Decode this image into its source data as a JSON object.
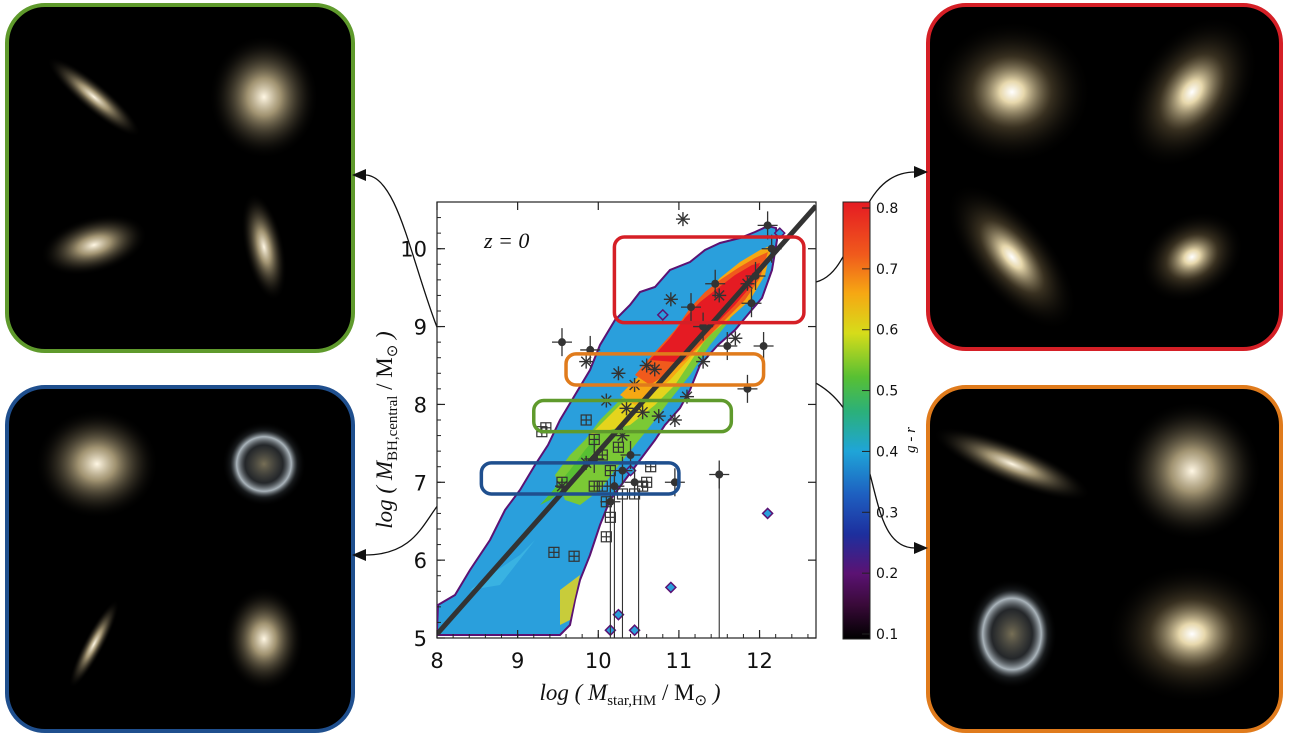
{
  "chart_data": {
    "type": "heatmap",
    "title": "",
    "annotation": "z = 0",
    "xlabel": {
      "prefix": "log ( ",
      "main": "M",
      "sub": "star,HM",
      "sep": " / M",
      "sun_sub": "⊙",
      "suffix": " )"
    },
    "ylabel": {
      "prefix": "log ( ",
      "main": "M",
      "sub": "BH,central",
      "sep": " / M",
      "sun_sub": "⊙",
      "suffix": " )"
    },
    "xlim": [
      8,
      12.7
    ],
    "ylim": [
      5,
      10.6
    ],
    "x_ticks": [
      "8",
      "9",
      "10",
      "11",
      "12"
    ],
    "y_ticks": [
      "5",
      "6",
      "7",
      "8",
      "9",
      "10"
    ],
    "colorbar": {
      "label": "g - r",
      "range": [
        0.1,
        0.8
      ],
      "ticks": [
        "0.1",
        "0.2",
        "0.3",
        "0.4",
        "0.5",
        "0.6",
        "0.7",
        "0.8"
      ]
    },
    "fit_line": {
      "x": [
        8,
        12.7
      ],
      "y": [
        5.05,
        10.55
      ]
    },
    "selection_boxes": [
      {
        "name": "red",
        "color": "#d51f26",
        "x": [
          10.2,
          12.55
        ],
        "y": [
          9.05,
          10.15
        ]
      },
      {
        "name": "orange",
        "color": "#e07b1c",
        "x": [
          9.6,
          12.05
        ],
        "y": [
          8.25,
          8.65
        ]
      },
      {
        "name": "green",
        "color": "#5f9a2c",
        "x": [
          9.2,
          11.65
        ],
        "y": [
          7.65,
          8.05
        ]
      },
      {
        "name": "blue",
        "color": "#1f4f8e",
        "x": [
          8.55,
          11.0
        ],
        "y": [
          6.85,
          7.25
        ]
      }
    ],
    "observations_star": [
      [
        11.05,
        10.38
      ],
      [
        9.85,
        8.55
      ],
      [
        10.25,
        8.4
      ],
      [
        10.45,
        8.25
      ],
      [
        10.1,
        8.05
      ],
      [
        10.35,
        7.95
      ],
      [
        10.55,
        7.9
      ],
      [
        10.75,
        7.85
      ],
      [
        10.6,
        8.5
      ],
      [
        11.3,
        8.55
      ],
      [
        11.7,
        8.85
      ],
      [
        11.5,
        9.4
      ],
      [
        10.9,
        9.35
      ],
      [
        11.85,
        9.55
      ],
      [
        10.7,
        8.45
      ],
      [
        11.1,
        8.1
      ],
      [
        10.3,
        7.6
      ],
      [
        9.85,
        7.25
      ],
      [
        9.55,
        6.95
      ],
      [
        10.95,
        7.8
      ]
    ],
    "observations_square": [
      [
        9.3,
        7.65
      ],
      [
        9.85,
        7.8
      ],
      [
        10.05,
        7.35
      ],
      [
        10.25,
        7.45
      ],
      [
        10.1,
        6.75
      ],
      [
        10.15,
        6.55
      ],
      [
        10.1,
        6.3
      ],
      [
        9.45,
        6.1
      ],
      [
        9.7,
        6.05
      ],
      [
        10.45,
        6.85
      ],
      [
        10.55,
        6.95
      ],
      [
        10.6,
        7.0
      ],
      [
        10.05,
        6.95
      ],
      [
        10.3,
        6.85
      ],
      [
        9.95,
        7.55
      ],
      [
        9.35,
        7.7
      ],
      [
        10.65,
        7.2
      ],
      [
        10.15,
        7.15
      ],
      [
        9.95,
        6.95
      ],
      [
        9.55,
        7.0
      ]
    ],
    "observations_dot": [
      [
        9.55,
        8.8
      ],
      [
        9.9,
        8.7
      ],
      [
        11.15,
        9.25
      ],
      [
        11.85,
        8.2
      ],
      [
        12.05,
        8.75
      ],
      [
        11.95,
        9.65
      ],
      [
        12.1,
        10.3
      ],
      [
        10.95,
        7.0
      ],
      [
        11.5,
        7.1
      ],
      [
        10.3,
        7.15
      ],
      [
        10.15,
        6.75
      ],
      [
        10.2,
        6.95
      ],
      [
        10.45,
        7.0
      ],
      [
        9.95,
        7.3
      ],
      [
        11.3,
        9.0
      ],
      [
        11.6,
        8.75
      ],
      [
        12.15,
        10.0
      ],
      [
        11.9,
        9.3
      ],
      [
        11.45,
        9.55
      ],
      [
        10.4,
        7.35
      ]
    ],
    "outlier_diamonds": [
      [
        12.1,
        6.6
      ],
      [
        10.9,
        5.65
      ],
      [
        10.25,
        5.3
      ],
      [
        10.15,
        5.1
      ],
      [
        10.45,
        5.1
      ],
      [
        12.25,
        10.2
      ],
      [
        10.8,
        9.15
      ],
      [
        10.4,
        7.15
      ]
    ],
    "galaxy_panels": [
      {
        "id": "tl",
        "color": "#5f9a2c"
      },
      {
        "id": "bl",
        "color": "#1f4f8e"
      },
      {
        "id": "tr",
        "color": "#d51f26"
      },
      {
        "id": "br",
        "color": "#e07b1c"
      }
    ]
  }
}
